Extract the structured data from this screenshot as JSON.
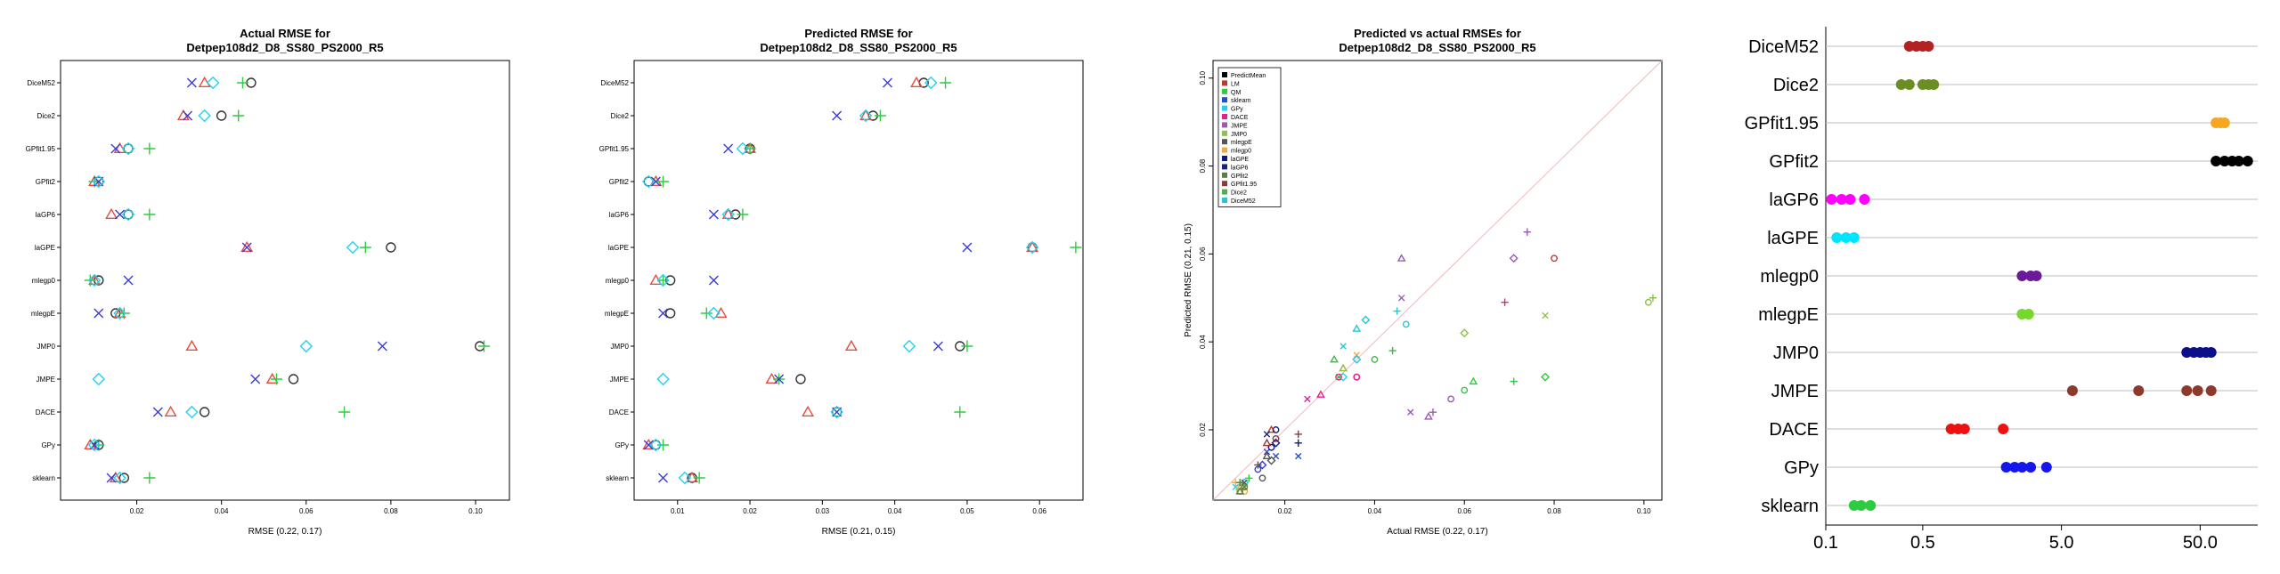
{
  "chart_data": [
    {
      "type": "scatter",
      "title": "Actual RMSE for\nDetpep108d2_D8_SS80_PS2000_R5",
      "xlabel": "RMSE (0.22, 0.17)",
      "xlim": [
        0.002,
        0.108
      ],
      "xticks": [
        "0.02",
        "0.04",
        "0.06",
        "0.08",
        "0.10"
      ],
      "xtick_values": [
        0.02,
        0.04,
        0.06,
        0.08,
        0.1
      ],
      "categories": [
        "DiceM52",
        "Dice2",
        "GPfit1.95",
        "GPfit2",
        "laGP6",
        "laGPE",
        "mlegp0",
        "mlegpE",
        "JMP0",
        "JMPE",
        "DACE",
        "GPy",
        "sklearn"
      ],
      "series": [
        {
          "name": "circle",
          "marker": "circle",
          "color": "#333333",
          "values": [
            0.047,
            0.04,
            0.018,
            0.011,
            0.018,
            0.08,
            0.011,
            0.015,
            0.101,
            0.057,
            0.036,
            0.011,
            0.017
          ]
        },
        {
          "name": "triangle",
          "marker": "triangle",
          "color": "#e74c3c",
          "values": [
            0.036,
            0.031,
            0.016,
            0.01,
            0.014,
            0.046,
            0.01,
            0.016,
            0.033,
            0.052,
            0.028,
            0.009,
            0.015
          ]
        },
        {
          "name": "plus",
          "marker": "plus",
          "color": "#2ecc40",
          "values": [
            0.045,
            0.044,
            0.023,
            0.01,
            0.023,
            0.074,
            0.009,
            0.017,
            0.102,
            0.053,
            0.069,
            0.011,
            0.023
          ]
        },
        {
          "name": "cross",
          "marker": "cross",
          "color": "#3b3bd6",
          "values": [
            0.033,
            0.032,
            0.015,
            0.011,
            0.016,
            0.046,
            0.018,
            0.011,
            0.078,
            0.048,
            0.025,
            0.01,
            0.014
          ]
        },
        {
          "name": "diamond",
          "marker": "diamond",
          "color": "#22d3ee",
          "values": [
            0.038,
            0.036,
            0.018,
            0.011,
            0.018,
            0.071,
            0.01,
            0.016,
            0.06,
            0.011,
            0.033,
            0.01,
            0.016
          ]
        }
      ]
    },
    {
      "type": "scatter",
      "title": "Predicted RMSE for\nDetpep108d2_D8_SS80_PS2000_R5",
      "xlabel": "RMSE (0.21, 0.15)",
      "xlim": [
        0.004,
        0.066
      ],
      "xticks": [
        "0.01",
        "0.02",
        "0.03",
        "0.04",
        "0.05",
        "0.06"
      ],
      "xtick_values": [
        0.01,
        0.02,
        0.03,
        0.04,
        0.05,
        0.06
      ],
      "categories": [
        "DiceM52",
        "Dice2",
        "GPfit1.95",
        "GPfit2",
        "laGP6",
        "laGPE",
        "mlegp0",
        "mlegpE",
        "JMP0",
        "JMPE",
        "DACE",
        "GPy",
        "sklearn"
      ],
      "series": [
        {
          "name": "circle",
          "marker": "circle",
          "color": "#333333",
          "values": [
            0.044,
            0.037,
            0.02,
            0.006,
            0.018,
            0.059,
            0.009,
            0.009,
            0.049,
            0.027,
            0.032,
            0.007,
            0.012
          ]
        },
        {
          "name": "triangle",
          "marker": "triangle",
          "color": "#e74c3c",
          "values": [
            0.043,
            0.036,
            0.02,
            0.007,
            0.017,
            0.059,
            0.007,
            0.016,
            0.034,
            0.023,
            0.028,
            0.006,
            0.012
          ]
        },
        {
          "name": "plus",
          "marker": "plus",
          "color": "#2ecc40",
          "values": [
            0.047,
            0.038,
            0.02,
            0.008,
            0.019,
            0.065,
            0.008,
            0.014,
            0.05,
            0.024,
            0.049,
            0.008,
            0.013
          ]
        },
        {
          "name": "cross",
          "marker": "cross",
          "color": "#3b3bd6",
          "values": [
            0.039,
            0.032,
            0.017,
            0.007,
            0.015,
            0.05,
            0.015,
            0.008,
            0.046,
            0.024,
            0.032,
            0.006,
            0.008
          ]
        },
        {
          "name": "diamond",
          "marker": "diamond",
          "color": "#22d3ee",
          "values": [
            0.045,
            0.036,
            0.019,
            0.006,
            0.017,
            0.059,
            0.008,
            0.015,
            0.042,
            0.008,
            0.032,
            0.007,
            0.011
          ]
        }
      ]
    },
    {
      "type": "scatter",
      "title": "Predicted vs actual RMSEs for\nDetpep108d2_D8_SS80_PS2000_R5",
      "xlabel": "Actual RMSE (0.22, 0.17)",
      "ylabel": "Predicted RMSE (0.21, 0.15)",
      "xlim": [
        0.004,
        0.104
      ],
      "ylim": [
        0.004,
        0.104
      ],
      "xticks": [
        "0.02",
        "0.04",
        "0.06",
        "0.08",
        "0.10"
      ],
      "xtick_values": [
        0.02,
        0.04,
        0.06,
        0.08,
        0.1
      ],
      "yticks": [
        "0.02",
        "0.04",
        "0.06",
        "0.08",
        "0.10"
      ],
      "ytick_values": [
        0.02,
        0.04,
        0.06,
        0.08,
        0.1
      ],
      "reference_line": "y = x",
      "legend": {
        "placement": "top-left",
        "entries": [
          {
            "label": "PredictMean",
            "color": "#000000"
          },
          {
            "label": "LM",
            "color": "#c0392b"
          },
          {
            "label": "QM",
            "color": "#2ecc40"
          },
          {
            "label": "sklearn",
            "color": "#1f4fd8"
          },
          {
            "label": "GPy",
            "color": "#22d3ee"
          },
          {
            "label": "DACE",
            "color": "#e91e8c"
          },
          {
            "label": "JMPE",
            "color": "#9b59b6"
          },
          {
            "label": "JMP0",
            "color": "#8bc34a"
          },
          {
            "label": "mlegpE",
            "color": "#555555"
          },
          {
            "label": "mlegp0",
            "color": "#f4a742"
          },
          {
            "label": "laGPE",
            "color": "#0a1a8a"
          },
          {
            "label": "laGP6",
            "color": "#1a237e"
          },
          {
            "label": "GPfit2",
            "color": "#607d3b"
          },
          {
            "label": "GPfit1.95",
            "color": "#8e3a3a"
          },
          {
            "label": "Dice2",
            "color": "#4caf50"
          },
          {
            "label": "DiceM52",
            "color": "#26c6da"
          }
        ]
      },
      "points": [
        {
          "x": 0.009,
          "y": 0.007,
          "marker": "cross",
          "color": "#22d3ee"
        },
        {
          "x": 0.01,
          "y": 0.006,
          "marker": "circle",
          "color": "#2ecc40"
        },
        {
          "x": 0.011,
          "y": 0.008,
          "marker": "diamond",
          "color": "#22d3ee"
        },
        {
          "x": 0.01,
          "y": 0.007,
          "marker": "triangle",
          "color": "#e74c3c"
        },
        {
          "x": 0.012,
          "y": 0.009,
          "marker": "plus",
          "color": "#2ecc40"
        },
        {
          "x": 0.014,
          "y": 0.011,
          "marker": "circle",
          "color": "#3b3bd6"
        },
        {
          "x": 0.015,
          "y": 0.012,
          "marker": "diamond",
          "color": "#3b3bd6"
        },
        {
          "x": 0.016,
          "y": 0.015,
          "marker": "cross",
          "color": "#3b3bd6"
        },
        {
          "x": 0.017,
          "y": 0.016,
          "marker": "circle",
          "color": "#0a1a8a"
        },
        {
          "x": 0.016,
          "y": 0.017,
          "marker": "triangle",
          "color": "#8e3a3a"
        },
        {
          "x": 0.018,
          "y": 0.018,
          "marker": "circle",
          "color": "#8e3a3a"
        },
        {
          "x": 0.017,
          "y": 0.02,
          "marker": "triangle",
          "color": "#c0392b"
        },
        {
          "x": 0.023,
          "y": 0.019,
          "marker": "plus",
          "color": "#8e3a3a"
        },
        {
          "x": 0.023,
          "y": 0.017,
          "marker": "plus",
          "color": "#0a1a8a"
        },
        {
          "x": 0.018,
          "y": 0.014,
          "marker": "cross",
          "color": "#1f4fd8"
        },
        {
          "x": 0.023,
          "y": 0.014,
          "marker": "cross",
          "color": "#1f4fd8"
        },
        {
          "x": 0.025,
          "y": 0.027,
          "marker": "cross",
          "color": "#e91e8c"
        },
        {
          "x": 0.028,
          "y": 0.028,
          "marker": "triangle",
          "color": "#e91e8c"
        },
        {
          "x": 0.032,
          "y": 0.032,
          "marker": "circle",
          "color": "#e91e8c"
        },
        {
          "x": 0.033,
          "y": 0.032,
          "marker": "diamond",
          "color": "#22d3ee"
        },
        {
          "x": 0.036,
          "y": 0.032,
          "marker": "circle",
          "color": "#9b59b6"
        },
        {
          "x": 0.033,
          "y": 0.034,
          "marker": "triangle",
          "color": "#f4a742"
        },
        {
          "x": 0.036,
          "y": 0.037,
          "marker": "cross",
          "color": "#f4a742"
        },
        {
          "x": 0.04,
          "y": 0.036,
          "marker": "circle",
          "color": "#4caf50"
        },
        {
          "x": 0.044,
          "y": 0.038,
          "marker": "plus",
          "color": "#4caf50"
        },
        {
          "x": 0.031,
          "y": 0.036,
          "marker": "triangle",
          "color": "#4caf50"
        },
        {
          "x": 0.032,
          "y": 0.032,
          "marker": "cross",
          "color": "#4caf50"
        },
        {
          "x": 0.036,
          "y": 0.036,
          "marker": "diamond",
          "color": "#26c6da"
        },
        {
          "x": 0.047,
          "y": 0.044,
          "marker": "circle",
          "color": "#26c6da"
        },
        {
          "x": 0.036,
          "y": 0.043,
          "marker": "triangle",
          "color": "#26c6da"
        },
        {
          "x": 0.045,
          "y": 0.047,
          "marker": "plus",
          "color": "#26c6da"
        },
        {
          "x": 0.038,
          "y": 0.045,
          "marker": "diamond",
          "color": "#26c6da"
        },
        {
          "x": 0.033,
          "y": 0.039,
          "marker": "cross",
          "color": "#26c6da"
        },
        {
          "x": 0.046,
          "y": 0.059,
          "marker": "triangle",
          "color": "#9b59b6"
        },
        {
          "x": 0.046,
          "y": 0.05,
          "marker": "cross",
          "color": "#9b59b6"
        },
        {
          "x": 0.074,
          "y": 0.065,
          "marker": "plus",
          "color": "#9b59b6"
        },
        {
          "x": 0.071,
          "y": 0.059,
          "marker": "diamond",
          "color": "#9b59b6"
        },
        {
          "x": 0.08,
          "y": 0.059,
          "marker": "circle",
          "color": "#c0392b"
        },
        {
          "x": 0.101,
          "y": 0.049,
          "marker": "circle",
          "color": "#8bc34a"
        },
        {
          "x": 0.102,
          "y": 0.05,
          "marker": "plus",
          "color": "#8bc34a"
        },
        {
          "x": 0.078,
          "y": 0.046,
          "marker": "cross",
          "color": "#8bc34a"
        },
        {
          "x": 0.06,
          "y": 0.042,
          "marker": "diamond",
          "color": "#8bc34a"
        },
        {
          "x": 0.033,
          "y": 0.034,
          "marker": "triangle",
          "color": "#8bc34a"
        },
        {
          "x": 0.057,
          "y": 0.027,
          "marker": "circle",
          "color": "#9b59b6"
        },
        {
          "x": 0.052,
          "y": 0.023,
          "marker": "triangle",
          "color": "#9b59b6"
        },
        {
          "x": 0.053,
          "y": 0.024,
          "marker": "plus",
          "color": "#9b59b6"
        },
        {
          "x": 0.048,
          "y": 0.024,
          "marker": "cross",
          "color": "#9b59b6"
        },
        {
          "x": 0.069,
          "y": 0.049,
          "marker": "plus",
          "color": "#e91e8c"
        },
        {
          "x": 0.036,
          "y": 0.032,
          "marker": "circle",
          "color": "#e91e8c"
        },
        {
          "x": 0.071,
          "y": 0.031,
          "marker": "plus",
          "color": "#2ecc40"
        },
        {
          "x": 0.078,
          "y": 0.032,
          "marker": "diamond",
          "color": "#2ecc40"
        },
        {
          "x": 0.062,
          "y": 0.031,
          "marker": "triangle",
          "color": "#2ecc40"
        },
        {
          "x": 0.06,
          "y": 0.029,
          "marker": "circle",
          "color": "#2ecc40"
        },
        {
          "x": 0.011,
          "y": 0.006,
          "marker": "circle",
          "color": "#f4a742"
        },
        {
          "x": 0.01,
          "y": 0.007,
          "marker": "triangle",
          "color": "#f4a742"
        },
        {
          "x": 0.009,
          "y": 0.008,
          "marker": "plus",
          "color": "#f4a742"
        },
        {
          "x": 0.016,
          "y": 0.014,
          "marker": "triangle",
          "color": "#555555"
        },
        {
          "x": 0.015,
          "y": 0.009,
          "marker": "circle",
          "color": "#555555"
        },
        {
          "x": 0.011,
          "y": 0.008,
          "marker": "cross",
          "color": "#555555"
        },
        {
          "x": 0.014,
          "y": 0.012,
          "marker": "plus",
          "color": "#555555"
        },
        {
          "x": 0.017,
          "y": 0.013,
          "marker": "diamond",
          "color": "#555555"
        },
        {
          "x": 0.011,
          "y": 0.007,
          "marker": "circle",
          "color": "#607d3b"
        },
        {
          "x": 0.01,
          "y": 0.006,
          "marker": "triangle",
          "color": "#607d3b"
        },
        {
          "x": 0.01,
          "y": 0.008,
          "marker": "plus",
          "color": "#607d3b"
        },
        {
          "x": 0.011,
          "y": 0.007,
          "marker": "cross",
          "color": "#607d3b"
        },
        {
          "x": 0.018,
          "y": 0.02,
          "marker": "circle",
          "color": "#1a237e"
        },
        {
          "x": 0.016,
          "y": 0.019,
          "marker": "cross",
          "color": "#1a237e"
        },
        {
          "x": 0.018,
          "y": 0.017,
          "marker": "diamond",
          "color": "#1a237e"
        }
      ]
    },
    {
      "type": "dot",
      "scale": "log",
      "xlim": [
        0.1,
        130
      ],
      "xticks": [
        "0.1",
        "0.5",
        "5.0",
        "50.0"
      ],
      "xtick_values": [
        0.1,
        0.5,
        5.0,
        50.0
      ],
      "categories": [
        "DiceM52",
        "Dice2",
        "GPfit1.95",
        "GPfit2",
        "laGP6",
        "laGPE",
        "mlegp0",
        "mlegpE",
        "JMP0",
        "JMPE",
        "DACE",
        "GPy",
        "sklearn"
      ],
      "rows": [
        {
          "category": "DiceM52",
          "color": "#b22222",
          "values": [
            0.4,
            0.45,
            0.5,
            0.55
          ]
        },
        {
          "category": "Dice2",
          "color": "#6b8e23",
          "values": [
            0.35,
            0.4,
            0.5,
            0.55,
            0.6
          ]
        },
        {
          "category": "GPfit1.95",
          "color": "#f5a623",
          "values": [
            65,
            70,
            75
          ]
        },
        {
          "category": "GPfit2",
          "color": "#000000",
          "values": [
            65,
            75,
            85,
            95,
            110
          ]
        },
        {
          "category": "laGP6",
          "color": "#ff00ff",
          "values": [
            0.11,
            0.13,
            0.15,
            0.19
          ]
        },
        {
          "category": "laGPE",
          "color": "#00e5ff",
          "values": [
            0.12,
            0.14,
            0.16
          ]
        },
        {
          "category": "mlegp0",
          "color": "#6a1b9a",
          "values": [
            2.6,
            3.0,
            3.3
          ]
        },
        {
          "category": "mlegpE",
          "color": "#76d72c",
          "values": [
            2.6,
            2.9
          ]
        },
        {
          "category": "JMP0",
          "color": "#0b0f8a",
          "values": [
            40,
            45,
            50,
            55,
            60
          ]
        },
        {
          "category": "JMPE",
          "color": "#8b3a2b",
          "values": [
            6,
            18,
            40,
            48,
            60
          ]
        },
        {
          "category": "DACE",
          "color": "#ee1111",
          "values": [
            0.8,
            0.9,
            1.0,
            1.9
          ]
        },
        {
          "category": "GPy",
          "color": "#1515ee",
          "values": [
            2.0,
            2.3,
            2.6,
            3.0,
            3.9
          ]
        },
        {
          "category": "sklearn",
          "color": "#2ecc40",
          "values": [
            0.16,
            0.18,
            0.21
          ]
        }
      ]
    }
  ]
}
